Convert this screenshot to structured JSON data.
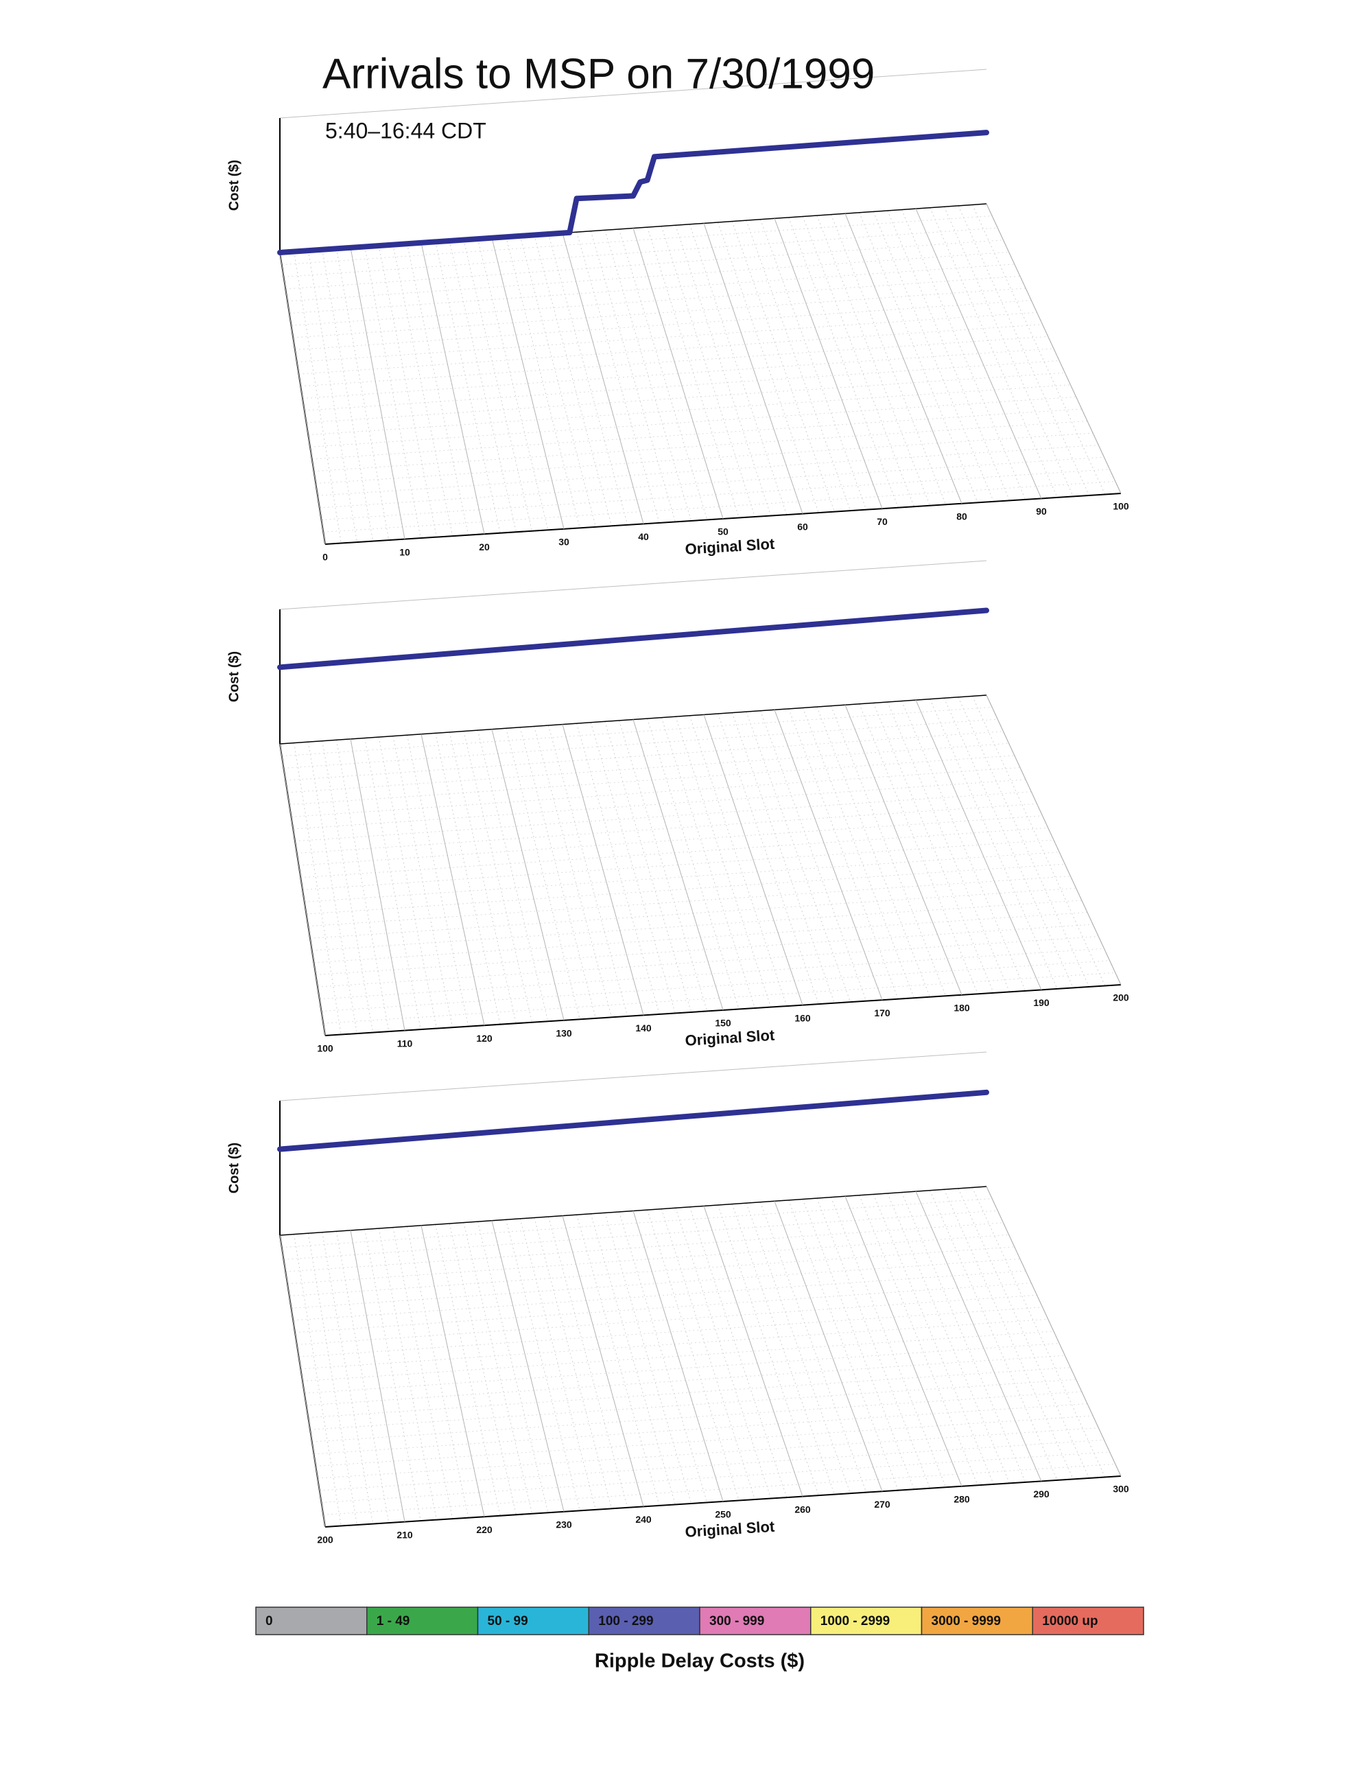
{
  "chart_data": [
    {
      "type": "line",
      "title": "Arrivals to MSP on 7/30/1999",
      "subtitle": "5:40–16:44 CDT",
      "xlabel": "Original Slot",
      "ylabel": "Cost ($)",
      "xlim": [
        0,
        100
      ],
      "xticks": [
        0,
        10,
        20,
        30,
        40,
        50,
        60,
        70,
        80,
        90,
        100
      ],
      "ylim": [
        0,
        100
      ],
      "series": [
        {
          "color": "#2e3192",
          "x": [
            0,
            41,
            42,
            50,
            51,
            52,
            53,
            100
          ],
          "values": [
            0,
            0,
            25,
            24,
            34,
            35,
            52,
            53
          ]
        }
      ]
    },
    {
      "type": "line",
      "xlabel": "Original Slot",
      "ylabel": "Cost ($)",
      "xlim": [
        100,
        200
      ],
      "xticks": [
        100,
        110,
        120,
        130,
        140,
        150,
        160,
        170,
        180,
        190,
        200
      ],
      "ylim": [
        0,
        100
      ],
      "series": [
        {
          "color": "#2e3192",
          "x": [
            100,
            150,
            200
          ],
          "values": [
            57,
            60,
            63
          ]
        }
      ]
    },
    {
      "type": "line",
      "xlabel": "Original Slot",
      "ylabel": "Cost ($)",
      "xlim": [
        200,
        300
      ],
      "xticks": [
        200,
        210,
        220,
        230,
        240,
        250,
        260,
        270,
        280,
        290,
        300
      ],
      "ylim": [
        0,
        100
      ],
      "series": [
        {
          "color": "#2e3192",
          "x": [
            200,
            250,
            300
          ],
          "values": [
            64,
            67,
            70
          ]
        }
      ]
    },
    {
      "type": "colorbar",
      "title": "Ripple Delay Costs ($)",
      "categories": [
        "0",
        "1 - 49",
        "50 - 99",
        "100 - 299",
        "300 - 999",
        "1000 - 2999",
        "3000 - 9999",
        "10000 up"
      ],
      "colors": [
        "#a7a9ac",
        "#3aa84a",
        "#29b5d8",
        "#5a5fb0",
        "#e07bb5",
        "#f7ef7a",
        "#f2a641",
        "#e56b5e"
      ]
    }
  ]
}
